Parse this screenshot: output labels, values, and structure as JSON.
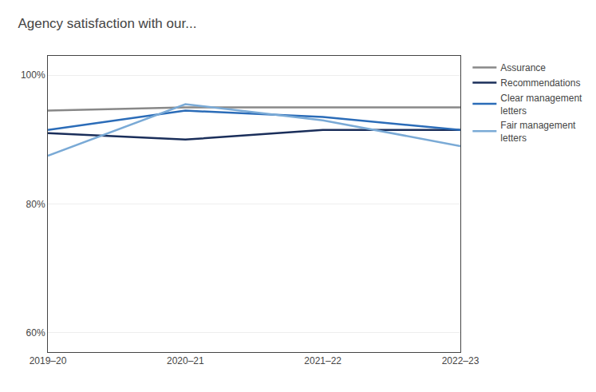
{
  "chart_data": {
    "type": "line",
    "title": "Agency satisfaction with our...",
    "categories": [
      "2019–20",
      "2020–21",
      "2021–22",
      "2022–23"
    ],
    "series": [
      {
        "name": "Assurance",
        "color": "#888888",
        "values": [
          94.5,
          95.0,
          95.0,
          95.0
        ]
      },
      {
        "name": "Recommendations",
        "color": "#1a2e5a",
        "values": [
          91.0,
          90.0,
          91.5,
          91.5
        ]
      },
      {
        "name": "Clear management\nletters",
        "color": "#2b6cb8",
        "values": [
          91.5,
          94.5,
          93.5,
          91.5
        ]
      },
      {
        "name": "Fair management\nletters",
        "color": "#7aaad6",
        "values": [
          87.5,
          95.5,
          93.0,
          89.0
        ]
      }
    ],
    "ylim": [
      57,
      103
    ],
    "yticks": [
      {
        "value": 60,
        "label": "60%"
      },
      {
        "value": 80,
        "label": "80%"
      },
      {
        "value": 100,
        "label": "100%"
      }
    ],
    "grid": true,
    "legend": "right"
  }
}
